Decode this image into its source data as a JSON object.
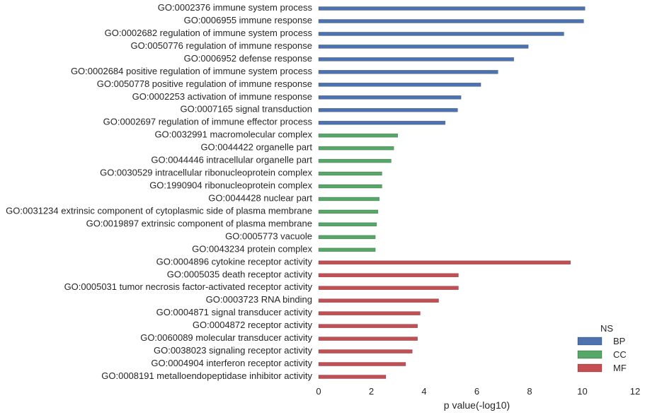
{
  "chart_data": {
    "type": "bar",
    "orientation": "horizontal",
    "xlabel": "p value(-log10)",
    "xlim": [
      0,
      12
    ],
    "xticks": [
      0,
      2,
      4,
      6,
      8,
      10,
      12
    ],
    "grid": false,
    "legend": {
      "title": "NS",
      "placement": "bottom-right",
      "entries": [
        "BP",
        "CC",
        "MF"
      ]
    },
    "colors": {
      "BP": "#4c72b0",
      "CC": "#55a868",
      "MF": "#c44e52"
    },
    "bars": [
      {
        "label": "GO:0002376 immune system process",
        "ns": "BP",
        "value": 10.1
      },
      {
        "label": "GO:0006955 immune response",
        "ns": "BP",
        "value": 10.05
      },
      {
        "label": "GO:0002682 regulation of immune system process",
        "ns": "BP",
        "value": 9.3
      },
      {
        "label": "GO:0050776 regulation of immune response",
        "ns": "BP",
        "value": 7.95
      },
      {
        "label": "GO:0006952 defense response",
        "ns": "BP",
        "value": 7.4
      },
      {
        "label": "GO:0002684 positive regulation of immune system process",
        "ns": "BP",
        "value": 6.8
      },
      {
        "label": "GO:0050778 positive regulation of immune response",
        "ns": "BP",
        "value": 6.15
      },
      {
        "label": "GO:0002253 activation of immune response",
        "ns": "BP",
        "value": 5.4
      },
      {
        "label": "GO:0007165 signal transduction",
        "ns": "BP",
        "value": 5.27
      },
      {
        "label": "GO:0002697 regulation of immune effector process",
        "ns": "BP",
        "value": 4.8
      },
      {
        "label": "GO:0032991 macromolecular complex",
        "ns": "CC",
        "value": 3.0
      },
      {
        "label": "GO:0044422 organelle part",
        "ns": "CC",
        "value": 2.85
      },
      {
        "label": "GO:0044446 intracellular organelle part",
        "ns": "CC",
        "value": 2.75
      },
      {
        "label": "GO:0030529 intracellular ribonucleoprotein complex",
        "ns": "CC",
        "value": 2.4
      },
      {
        "label": "GO:1990904 ribonucleoprotein complex",
        "ns": "CC",
        "value": 2.4
      },
      {
        "label": "GO:0044428 nuclear part",
        "ns": "CC",
        "value": 2.3
      },
      {
        "label": "GO:0031234 extrinsic component of cytoplasmic side of plasma membrane",
        "ns": "CC",
        "value": 2.25
      },
      {
        "label": "GO:0019897 extrinsic component of plasma membrane",
        "ns": "CC",
        "value": 2.2
      },
      {
        "label": "GO:0005773 vacuole",
        "ns": "CC",
        "value": 2.15
      },
      {
        "label": "GO:0043234 protein complex",
        "ns": "CC",
        "value": 2.15
      },
      {
        "label": "GO:0004896 cytokine receptor activity",
        "ns": "MF",
        "value": 9.55
      },
      {
        "label": "GO:0005035 death receptor activity",
        "ns": "MF",
        "value": 5.3
      },
      {
        "label": "GO:0005031 tumor necrosis factor-activated receptor activity",
        "ns": "MF",
        "value": 5.3
      },
      {
        "label": "GO:0003723 RNA binding",
        "ns": "MF",
        "value": 4.55
      },
      {
        "label": "GO:0004871 signal transducer activity",
        "ns": "MF",
        "value": 3.85
      },
      {
        "label": "GO:0004872 receptor activity",
        "ns": "MF",
        "value": 3.75
      },
      {
        "label": "GO:0060089 molecular transducer activity",
        "ns": "MF",
        "value": 3.75
      },
      {
        "label": "GO:0038023 signaling receptor activity",
        "ns": "MF",
        "value": 3.55
      },
      {
        "label": "GO:0004904 interferon receptor activity",
        "ns": "MF",
        "value": 3.3
      },
      {
        "label": "GO:0008191 metalloendopeptidase inhibitor activity",
        "ns": "MF",
        "value": 2.55
      }
    ]
  }
}
